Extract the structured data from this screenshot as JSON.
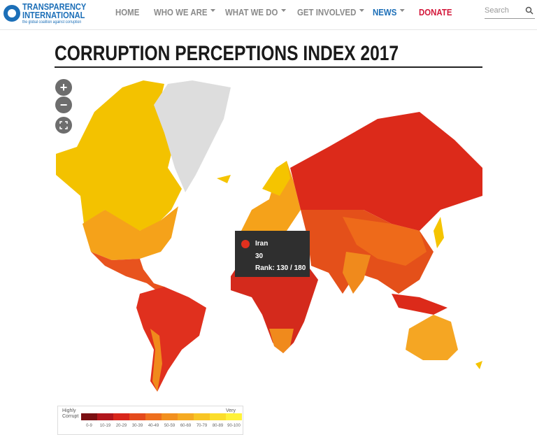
{
  "header": {
    "logo": {
      "line1": "TRANSPARENCY",
      "line2": "INTERNATIONAL",
      "tagline": "the global coalition against corruption"
    },
    "nav": [
      "HOME",
      "WHO WE ARE",
      "WHAT WE DO",
      "GET INVOLVED",
      "NEWS",
      "DONATE"
    ],
    "search": "Search"
  },
  "page": {
    "title": "CORRUPTION PERCEPTIONS INDEX 2017"
  },
  "map": {
    "tooltip": {
      "country": "Iran",
      "score": 30,
      "rank": "Rank: 130 / 180"
    },
    "legend": {
      "low_label": "Highly Corrupt",
      "high_label": "Very Clean",
      "ranges": [
        "0-9",
        "10-19",
        "20-29",
        "30-39",
        "40-49",
        "50-59",
        "60-69",
        "70-79",
        "80-89",
        "90-100"
      ]
    }
  }
}
